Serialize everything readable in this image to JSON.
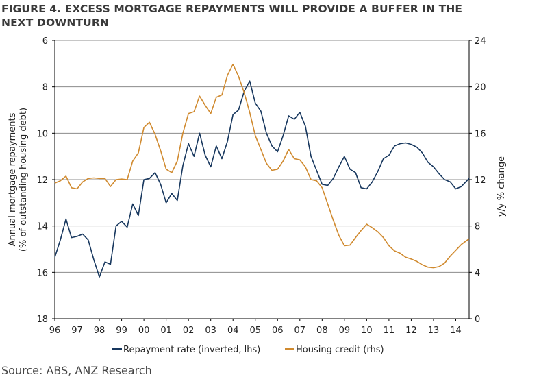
{
  "title_line1": "FIGURE 4. EXCESS MORTGAGE REPAYMENTS WILL PROVIDE A BUFFER IN THE",
  "title_line2": "NEXT DOWNTURN",
  "source": "Source: ABS, ANZ Research",
  "chart_data": {
    "type": "line",
    "ylabel_left_line1": "Annual mortgage repayments",
    "ylabel_left_line2": "(% of outstanding housing debt)",
    "ylabel_right": "y/y % change",
    "y_left": {
      "min": 6,
      "max": 18,
      "inverted": true,
      "ticks": [
        6,
        8,
        10,
        12,
        14,
        16,
        18
      ]
    },
    "y_right": {
      "min": 0,
      "max": 24,
      "ticks": [
        0,
        4,
        8,
        12,
        16,
        20,
        24
      ]
    },
    "x_range": [
      1996,
      2014.6
    ],
    "x_ticks": [
      {
        "value": 1996,
        "label": "96"
      },
      {
        "value": 1997,
        "label": "97"
      },
      {
        "value": 1998,
        "label": "98"
      },
      {
        "value": 1999,
        "label": "99"
      },
      {
        "value": 2000,
        "label": "00"
      },
      {
        "value": 2001,
        "label": "01"
      },
      {
        "value": 2002,
        "label": "02"
      },
      {
        "value": 2003,
        "label": "03"
      },
      {
        "value": 2004,
        "label": "04"
      },
      {
        "value": 2005,
        "label": "05"
      },
      {
        "value": 2006,
        "label": "06"
      },
      {
        "value": 2007,
        "label": "07"
      },
      {
        "value": 2008,
        "label": "08"
      },
      {
        "value": 2009,
        "label": "09"
      },
      {
        "value": 2010,
        "label": "10"
      },
      {
        "value": 2011,
        "label": "11"
      },
      {
        "value": 2012,
        "label": "12"
      },
      {
        "value": 2013,
        "label": "13"
      },
      {
        "value": 2014,
        "label": "14"
      }
    ],
    "grid": true,
    "legend_position": "bottom",
    "series": [
      {
        "name": "Repayment rate (inverted, lhs)",
        "axis": "left",
        "color": "#17375e",
        "points": [
          [
            1996.0,
            15.35
          ],
          [
            1996.25,
            14.6
          ],
          [
            1996.5,
            13.7
          ],
          [
            1996.75,
            14.5
          ],
          [
            1997.0,
            14.45
          ],
          [
            1997.25,
            14.35
          ],
          [
            1997.5,
            14.6
          ],
          [
            1997.75,
            15.45
          ],
          [
            1998.0,
            16.2
          ],
          [
            1998.25,
            15.55
          ],
          [
            1998.5,
            15.65
          ],
          [
            1998.75,
            14.0
          ],
          [
            1999.0,
            13.8
          ],
          [
            1999.25,
            14.05
          ],
          [
            1999.5,
            13.05
          ],
          [
            1999.75,
            13.55
          ],
          [
            2000.0,
            12.0
          ],
          [
            2000.25,
            11.95
          ],
          [
            2000.5,
            11.7
          ],
          [
            2000.75,
            12.2
          ],
          [
            2001.0,
            13.0
          ],
          [
            2001.25,
            12.6
          ],
          [
            2001.5,
            12.9
          ],
          [
            2001.75,
            11.4
          ],
          [
            2002.0,
            10.45
          ],
          [
            2002.25,
            11.0
          ],
          [
            2002.5,
            10.0
          ],
          [
            2002.75,
            10.95
          ],
          [
            2003.0,
            11.45
          ],
          [
            2003.25,
            10.55
          ],
          [
            2003.5,
            11.1
          ],
          [
            2003.75,
            10.35
          ],
          [
            2004.0,
            9.2
          ],
          [
            2004.25,
            9.0
          ],
          [
            2004.5,
            8.2
          ],
          [
            2004.75,
            7.75
          ],
          [
            2005.0,
            8.7
          ],
          [
            2005.25,
            9.05
          ],
          [
            2005.5,
            10.0
          ],
          [
            2005.75,
            10.55
          ],
          [
            2006.0,
            10.8
          ],
          [
            2006.25,
            10.1
          ],
          [
            2006.5,
            9.25
          ],
          [
            2006.75,
            9.4
          ],
          [
            2007.0,
            9.1
          ],
          [
            2007.25,
            9.7
          ],
          [
            2007.5,
            11.0
          ],
          [
            2007.75,
            11.6
          ],
          [
            2008.0,
            12.2
          ],
          [
            2008.25,
            12.25
          ],
          [
            2008.5,
            11.95
          ],
          [
            2008.75,
            11.45
          ],
          [
            2009.0,
            11.0
          ],
          [
            2009.25,
            11.55
          ],
          [
            2009.5,
            11.7
          ],
          [
            2009.75,
            12.35
          ],
          [
            2010.0,
            12.4
          ],
          [
            2010.25,
            12.1
          ],
          [
            2010.5,
            11.65
          ],
          [
            2010.75,
            11.1
          ],
          [
            2011.0,
            10.95
          ],
          [
            2011.25,
            10.55
          ],
          [
            2011.5,
            10.45
          ],
          [
            2011.75,
            10.42
          ],
          [
            2012.0,
            10.48
          ],
          [
            2012.25,
            10.6
          ],
          [
            2012.5,
            10.85
          ],
          [
            2012.75,
            11.25
          ],
          [
            2013.0,
            11.45
          ],
          [
            2013.25,
            11.75
          ],
          [
            2013.5,
            12.0
          ],
          [
            2013.75,
            12.1
          ],
          [
            2014.0,
            12.4
          ],
          [
            2014.25,
            12.3
          ],
          [
            2014.6,
            11.95
          ]
        ]
      },
      {
        "name": "Housing credit (rhs)",
        "axis": "right",
        "color": "#d08a2f",
        "points": [
          [
            1996.0,
            11.7
          ],
          [
            1996.25,
            11.9
          ],
          [
            1996.5,
            12.3
          ],
          [
            1996.75,
            11.3
          ],
          [
            1997.0,
            11.2
          ],
          [
            1997.25,
            11.8
          ],
          [
            1997.5,
            12.1
          ],
          [
            1997.75,
            12.15
          ],
          [
            1998.0,
            12.1
          ],
          [
            1998.25,
            12.1
          ],
          [
            1998.5,
            11.4
          ],
          [
            1998.75,
            12.0
          ],
          [
            1999.0,
            12.05
          ],
          [
            1999.25,
            12.0
          ],
          [
            1999.5,
            13.6
          ],
          [
            1999.75,
            14.3
          ],
          [
            2000.0,
            16.5
          ],
          [
            2000.25,
            16.95
          ],
          [
            2000.5,
            15.9
          ],
          [
            2000.75,
            14.5
          ],
          [
            2001.0,
            12.9
          ],
          [
            2001.25,
            12.6
          ],
          [
            2001.5,
            13.6
          ],
          [
            2001.75,
            16.0
          ],
          [
            2002.0,
            17.7
          ],
          [
            2002.25,
            17.85
          ],
          [
            2002.5,
            19.2
          ],
          [
            2002.75,
            18.4
          ],
          [
            2003.0,
            17.7
          ],
          [
            2003.25,
            19.1
          ],
          [
            2003.5,
            19.3
          ],
          [
            2003.75,
            21.0
          ],
          [
            2004.0,
            21.95
          ],
          [
            2004.25,
            20.9
          ],
          [
            2004.5,
            19.5
          ],
          [
            2004.75,
            17.8
          ],
          [
            2005.0,
            15.8
          ],
          [
            2005.25,
            14.6
          ],
          [
            2005.5,
            13.4
          ],
          [
            2005.75,
            12.8
          ],
          [
            2006.0,
            12.9
          ],
          [
            2006.25,
            13.6
          ],
          [
            2006.5,
            14.6
          ],
          [
            2006.75,
            13.8
          ],
          [
            2007.0,
            13.7
          ],
          [
            2007.25,
            13.1
          ],
          [
            2007.5,
            12.0
          ],
          [
            2007.75,
            11.9
          ],
          [
            2008.0,
            11.3
          ],
          [
            2008.25,
            9.9
          ],
          [
            2008.5,
            8.5
          ],
          [
            2008.75,
            7.2
          ],
          [
            2009.0,
            6.3
          ],
          [
            2009.25,
            6.35
          ],
          [
            2009.5,
            7.0
          ],
          [
            2009.75,
            7.6
          ],
          [
            2010.0,
            8.15
          ],
          [
            2010.25,
            7.85
          ],
          [
            2010.5,
            7.5
          ],
          [
            2010.75,
            7.0
          ],
          [
            2011.0,
            6.3
          ],
          [
            2011.25,
            5.85
          ],
          [
            2011.5,
            5.65
          ],
          [
            2011.75,
            5.3
          ],
          [
            2012.0,
            5.15
          ],
          [
            2012.25,
            4.95
          ],
          [
            2012.5,
            4.65
          ],
          [
            2012.75,
            4.45
          ],
          [
            2013.0,
            4.4
          ],
          [
            2013.25,
            4.5
          ],
          [
            2013.5,
            4.8
          ],
          [
            2013.75,
            5.4
          ],
          [
            2014.0,
            5.9
          ],
          [
            2014.25,
            6.4
          ],
          [
            2014.6,
            6.9
          ]
        ]
      }
    ]
  }
}
